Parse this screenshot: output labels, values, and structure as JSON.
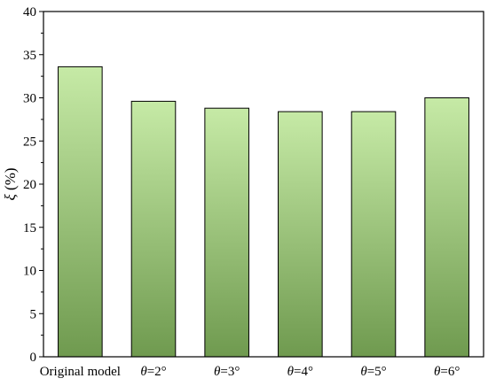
{
  "chart_data": {
    "type": "bar",
    "categories": [
      {
        "symbol": "",
        "text": "Original model"
      },
      {
        "symbol": "θ",
        "text": "=2°"
      },
      {
        "symbol": "θ",
        "text": "=3°"
      },
      {
        "symbol": "θ",
        "text": "=4°"
      },
      {
        "symbol": "θ",
        "text": "=5°"
      },
      {
        "symbol": "θ",
        "text": "=6°"
      }
    ],
    "values": [
      33.6,
      29.6,
      28.8,
      28.4,
      28.4,
      30.0
    ],
    "ylabel": {
      "symbol": "ξ",
      "text": " (%)"
    },
    "xlabel": "",
    "ylim": [
      0,
      40
    ],
    "yticks": [
      0,
      5,
      10,
      15,
      20,
      25,
      30,
      35,
      40
    ],
    "grid": false,
    "colors": {
      "bar_top": "#c6eaa6",
      "bar_bottom": "#6f9a4f",
      "bar_edge": "#000000",
      "axis": "#000000"
    }
  }
}
